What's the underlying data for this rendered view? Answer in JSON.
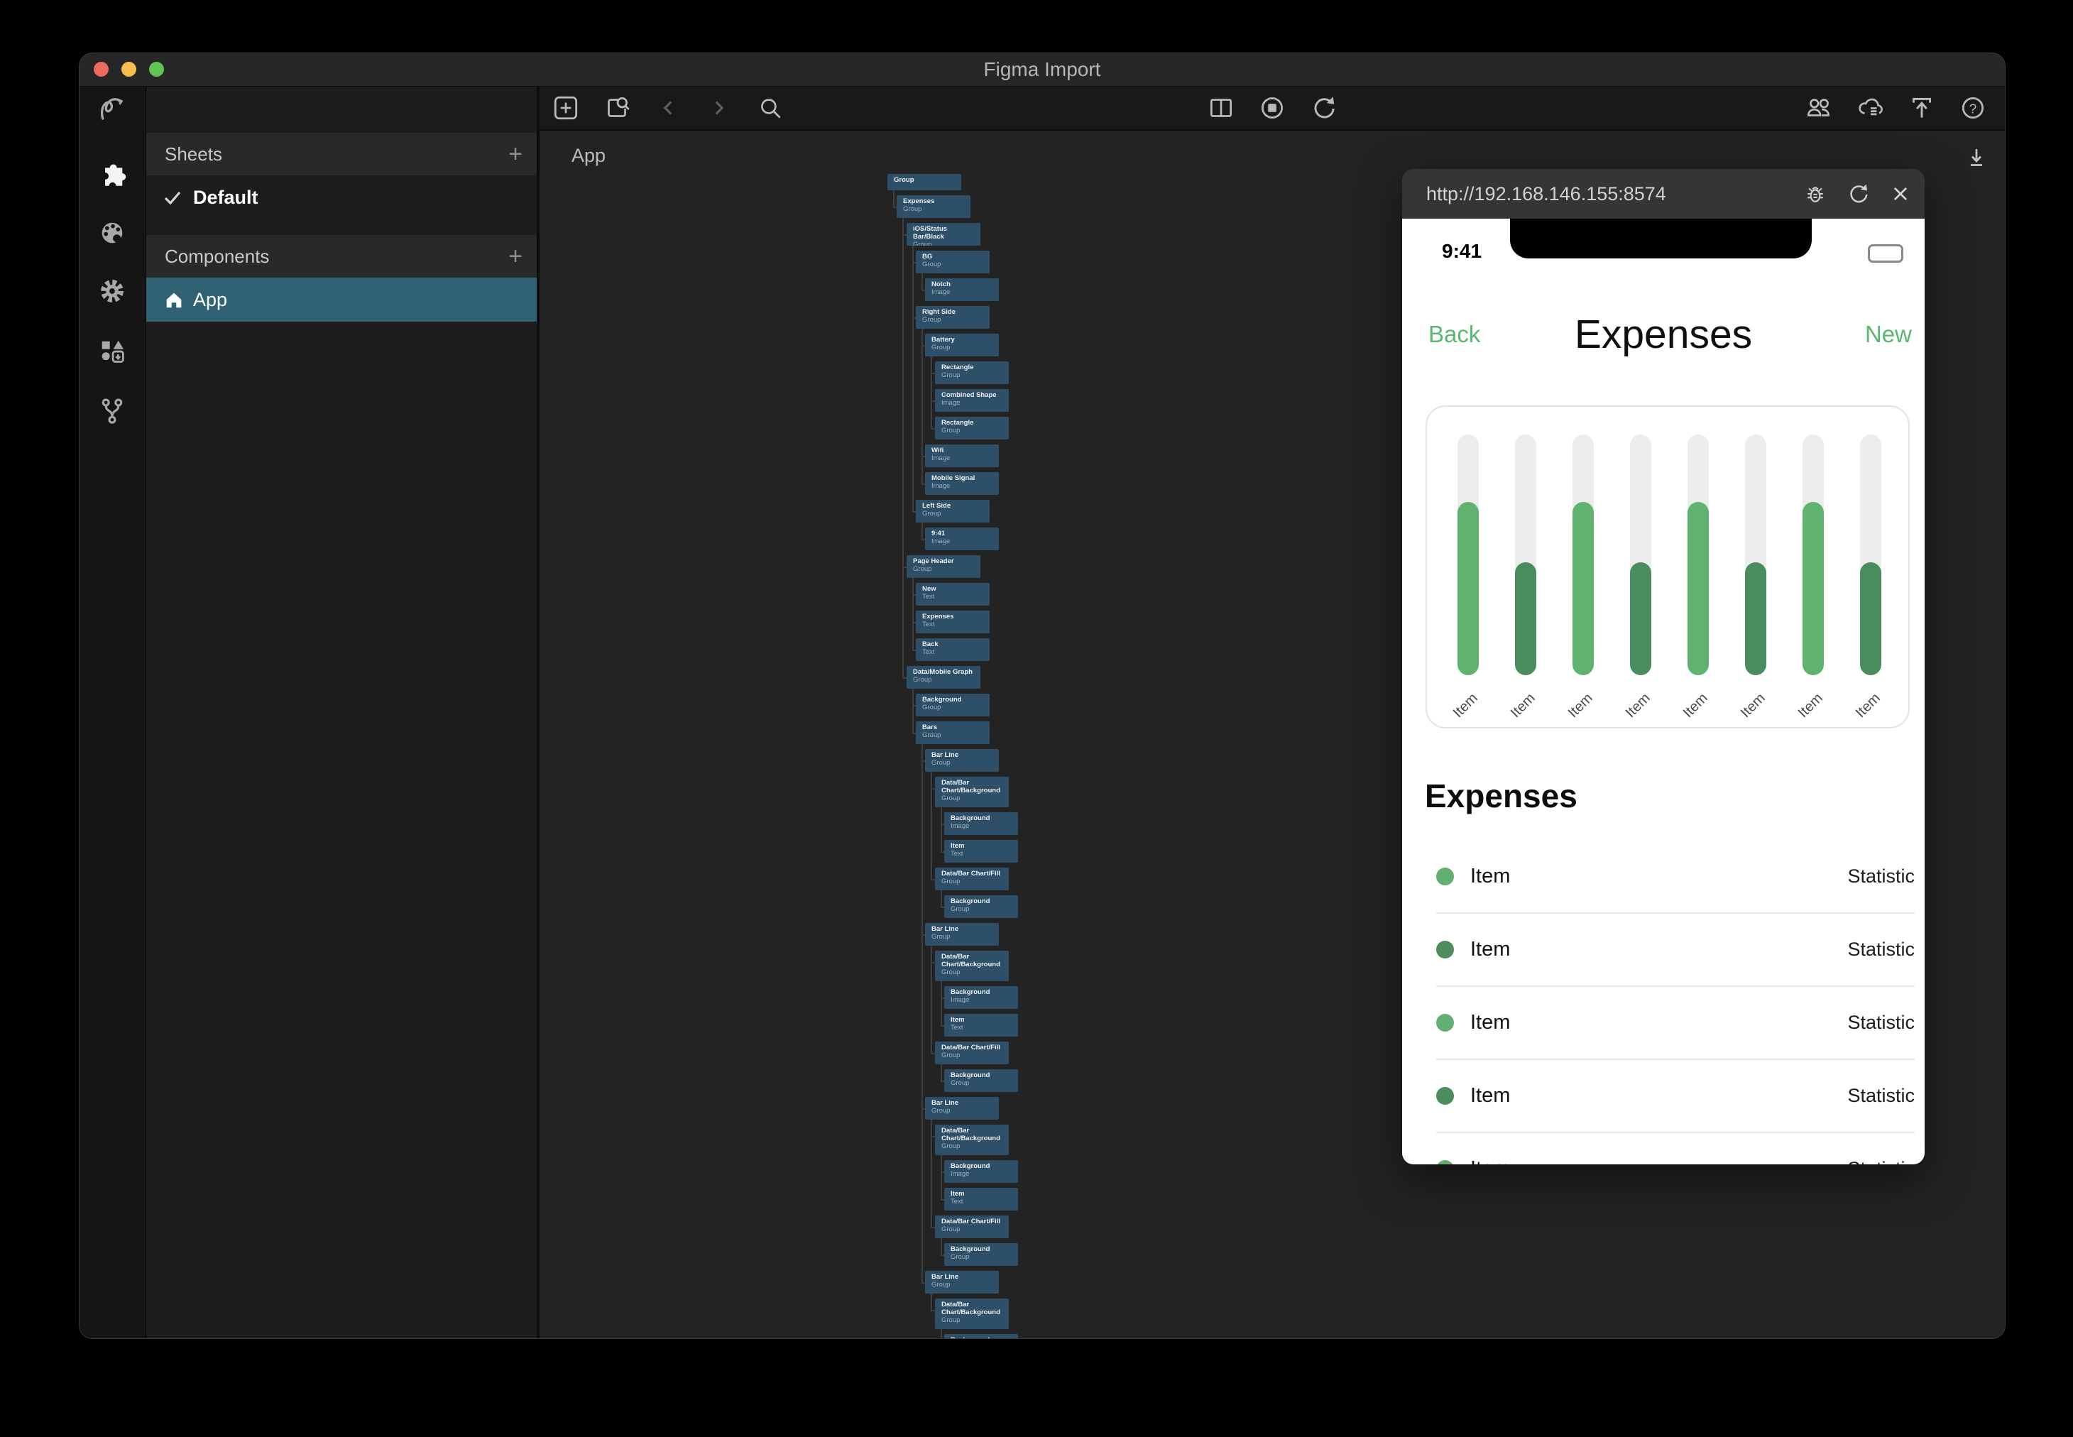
{
  "window": {
    "title": "Figma Import"
  },
  "rail": {
    "icons": [
      "flow-icon",
      "plugin-puzzle-icon",
      "palette-icon",
      "gear-icon",
      "shapes-import-icon",
      "branch-icon"
    ],
    "active": "plugin-puzzle-icon"
  },
  "panel": {
    "sheets_header": "Sheets",
    "add_label": "+",
    "sheets": [
      {
        "label": "Default",
        "checked": true
      }
    ],
    "components_header": "Components",
    "components": [
      {
        "label": "App",
        "selected": true
      }
    ],
    "selection_color": "#2f6272"
  },
  "canvas": {
    "board_label": "App",
    "toolbar_icons_left": [
      "add-sheet-icon",
      "inspect-doc-icon",
      "nav-back-icon",
      "nav-forward-icon",
      "search-icon"
    ],
    "toolbar_icons_center": [
      "split-view-icon",
      "stop-icon",
      "refresh-icon"
    ],
    "toolbar_icons_right": [
      "collaborators-icon",
      "cloud-sync-icon",
      "upload-icon",
      "help-icon"
    ],
    "corner_icon": "download-icon",
    "node_color": "#2e4f68",
    "tree": [
      {
        "label": "Group",
        "type": "",
        "depth": 0
      },
      {
        "label": "Expenses",
        "type": "Group",
        "depth": 1
      },
      {
        "label": "iOS/Status Bar/Black",
        "type": "Group",
        "depth": 2
      },
      {
        "label": "BG",
        "type": "Group",
        "depth": 3
      },
      {
        "label": "Notch",
        "type": "Image",
        "depth": 4
      },
      {
        "label": "Right Side",
        "type": "Group",
        "depth": 3
      },
      {
        "label": "Battery",
        "type": "Group",
        "depth": 4
      },
      {
        "label": "Rectangle",
        "type": "Group",
        "depth": 5
      },
      {
        "label": "Combined Shape",
        "type": "Image",
        "depth": 5
      },
      {
        "label": "Rectangle",
        "type": "Group",
        "depth": 5
      },
      {
        "label": "Wifi",
        "type": "Image",
        "depth": 4
      },
      {
        "label": "Mobile Signal",
        "type": "Image",
        "depth": 4
      },
      {
        "label": "Left Side",
        "type": "Group",
        "depth": 3
      },
      {
        "label": "9:41",
        "type": "Image",
        "depth": 4
      },
      {
        "label": "Page Header",
        "type": "Group",
        "depth": 2
      },
      {
        "label": "New",
        "type": "Text",
        "depth": 3
      },
      {
        "label": "Expenses",
        "type": "Text",
        "depth": 3
      },
      {
        "label": "Back",
        "type": "Text",
        "depth": 3
      },
      {
        "label": "Data/Mobile Graph",
        "type": "Group",
        "depth": 2
      },
      {
        "label": "Background",
        "type": "Group",
        "depth": 3
      },
      {
        "label": "Bars",
        "type": "Group",
        "depth": 3
      },
      {
        "label": "Bar Line",
        "type": "Group",
        "depth": 4
      },
      {
        "label": "Data/Bar Chart/Background",
        "type": "Group",
        "depth": 5
      },
      {
        "label": "Background",
        "type": "Image",
        "depth": 6
      },
      {
        "label": "Item",
        "type": "Text",
        "depth": 6
      },
      {
        "label": "Data/Bar Chart/Fill",
        "type": "Group",
        "depth": 5
      },
      {
        "label": "Background",
        "type": "Group",
        "depth": 6
      },
      {
        "label": "Bar Line",
        "type": "Group",
        "depth": 4
      },
      {
        "label": "Data/Bar Chart/Background",
        "type": "Group",
        "depth": 5
      },
      {
        "label": "Background",
        "type": "Image",
        "depth": 6
      },
      {
        "label": "Item",
        "type": "Text",
        "depth": 6
      },
      {
        "label": "Data/Bar Chart/Fill",
        "type": "Group",
        "depth": 5
      },
      {
        "label": "Background",
        "type": "Group",
        "depth": 6
      },
      {
        "label": "Bar Line",
        "type": "Group",
        "depth": 4
      },
      {
        "label": "Data/Bar Chart/Background",
        "type": "Group",
        "depth": 5
      },
      {
        "label": "Background",
        "type": "Image",
        "depth": 6
      },
      {
        "label": "Item",
        "type": "Text",
        "depth": 6
      },
      {
        "label": "Data/Bar Chart/Fill",
        "type": "Group",
        "depth": 5
      },
      {
        "label": "Background",
        "type": "Group",
        "depth": 6
      },
      {
        "label": "Bar Line",
        "type": "Group",
        "depth": 4
      },
      {
        "label": "Data/Bar Chart/Background",
        "type": "Group",
        "depth": 5
      },
      {
        "label": "Background",
        "type": "Image",
        "depth": 6
      }
    ]
  },
  "preview": {
    "url": "http://192.168.146.155:8574",
    "chrome_icons": [
      "bug-icon",
      "reload-icon",
      "close-icon"
    ],
    "status_time": "9:41",
    "nav": {
      "back": "Back",
      "title": "Expenses",
      "new": "New"
    },
    "section_title": "Expenses",
    "accent_green": "#5ab771",
    "rows": [
      {
        "label": "Item",
        "value": "Statistic",
        "dot_color": "#63af72"
      },
      {
        "label": "Item",
        "value": "Statistic",
        "dot_color": "#4d8c5c"
      },
      {
        "label": "Item",
        "value": "Statistic",
        "dot_color": "#63af72"
      },
      {
        "label": "Item",
        "value": "Statistic",
        "dot_color": "#4d8c5c"
      },
      {
        "label": "Item",
        "value": "Statistic",
        "dot_color": "#63af72"
      }
    ]
  },
  "chart_data": {
    "type": "bar",
    "categories": [
      "Item",
      "Item",
      "Item",
      "Item",
      "Item",
      "Item",
      "Item",
      "Item"
    ],
    "values_pct": [
      72,
      47,
      72,
      47,
      72,
      47,
      72,
      47
    ],
    "bar_colors": [
      "#60b36f",
      "#4a8c5e",
      "#60b36f",
      "#4a8c5e",
      "#60b36f",
      "#4a8c5e",
      "#60b36f",
      "#4a8c5e"
    ],
    "track_color": "#ececec",
    "title": "",
    "xlabel": "",
    "ylabel": "",
    "ylim": [
      0,
      100
    ],
    "grid": false,
    "legend": false,
    "note": "rounded pill bars on gray tracks, x labels rotated -45deg"
  }
}
